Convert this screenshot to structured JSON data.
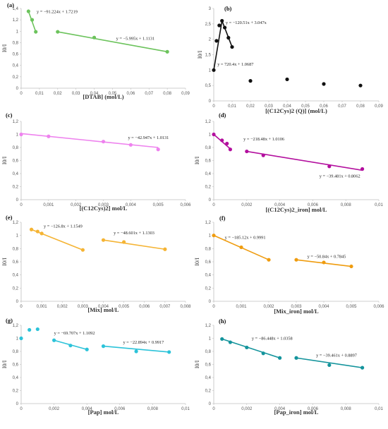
{
  "chart_data": [
    {
      "type": "scatter",
      "label": "(a)",
      "color": "#6cc35c",
      "xlabel": "[DTAB] (mol/L)",
      "ylabel": "I0/I",
      "xlim": [
        0,
        0.09
      ],
      "ylim": [
        0,
        1.4
      ],
      "xstep": 0.01,
      "ystep": 0.2,
      "xticks": [
        "0",
        "0,01",
        "0,02",
        "0,03",
        "0,04",
        "0,05",
        "0,06",
        "0,07",
        "0,08",
        "0,09"
      ],
      "yticks": [
        "0",
        "0,2",
        "0,4",
        "0,6",
        "0,8",
        "1",
        "1,2",
        "1,4"
      ],
      "points": [
        [
          0.004,
          1.35
        ],
        [
          0.006,
          1.2
        ],
        [
          0.008,
          0.99
        ],
        [
          0.02,
          0.99
        ],
        [
          0.04,
          0.89
        ],
        [
          0.08,
          0.64
        ]
      ],
      "lines": [
        [
          [
            0.004,
            1.35
          ],
          [
            0.008,
            0.99
          ]
        ],
        [
          [
            0.02,
            0.99
          ],
          [
            0.08,
            0.64
          ]
        ]
      ],
      "equations": [
        {
          "text": "y = −91.224x + 1.7219",
          "x": 0.0085,
          "y": 1.32
        },
        {
          "text": "y = −5.995x + 1.1131",
          "x": 0.052,
          "y": 0.85
        }
      ]
    },
    {
      "type": "scatter",
      "label": "(b)",
      "color": "#111111",
      "xlabel": "[(C12Cys)2 (Q)] (mol/L)",
      "ylabel": "I0/I",
      "xlim": [
        0,
        0.09
      ],
      "ylim": [
        0,
        3
      ],
      "xstep": 0.01,
      "ystep": 0.5,
      "xticks": [
        "0",
        "0,01",
        "0,02",
        "0,03",
        "0,04",
        "0,05",
        "0,06",
        "0,07",
        "0,08",
        "0,09"
      ],
      "yticks": [
        "0",
        "0,5",
        "1",
        "1,5",
        "2",
        "2,5",
        "3"
      ],
      "points": [
        [
          0,
          1.0
        ],
        [
          0.0015,
          1.95
        ],
        [
          0.003,
          2.45
        ],
        [
          0.0045,
          2.6
        ],
        [
          0.006,
          2.38
        ],
        [
          0.008,
          2.05
        ],
        [
          0.01,
          1.75
        ],
        [
          0.02,
          0.65
        ],
        [
          0.04,
          0.7
        ],
        [
          0.06,
          0.55
        ],
        [
          0.08,
          0.5
        ]
      ],
      "lines": [
        [
          [
            0,
            1.0
          ],
          [
            0.0045,
            2.6
          ]
        ],
        [
          [
            0.0045,
            2.6
          ],
          [
            0.01,
            1.75
          ]
        ]
      ],
      "equations": [
        {
          "text": "y = −120.51x + 3.047x",
          "x": 0.0065,
          "y": 2.5
        },
        {
          "text": "y = 720.4x + 1.0687",
          "x": 0.002,
          "y": 1.15
        }
      ]
    },
    {
      "type": "scatter",
      "label": "(c)",
      "color": "#ee82ee",
      "xlabel": "[(C12Cys)2] mol/L",
      "ylabel": "I0/I",
      "xlim": [
        0,
        0.006
      ],
      "ylim": [
        0,
        1.2
      ],
      "xstep": 0.001,
      "ystep": 0.2,
      "xticks": [
        "0",
        "0,001",
        "0,002",
        "0,003",
        "0,004",
        "0,005",
        "0,006"
      ],
      "yticks": [
        "0",
        "0,2",
        "0,4",
        "0,6",
        "0,8",
        "1",
        "1,2"
      ],
      "points": [
        [
          0,
          1.0
        ],
        [
          0.001,
          0.97
        ],
        [
          0.003,
          0.89
        ],
        [
          0.004,
          0.84
        ],
        [
          0.005,
          0.77
        ]
      ],
      "lines": [
        [
          [
            0,
            1.013
          ],
          [
            0.005,
            0.8
          ]
        ]
      ],
      "equations": [
        {
          "text": "y = −42.947x + 1.0131",
          "x": 0.0039,
          "y": 0.93
        }
      ]
    },
    {
      "type": "scatter",
      "label": "(d)",
      "color": "#b30f9e",
      "xlabel": "[(C12Cys)2_iron] mol/L",
      "ylabel": "I0/I",
      "xlim": [
        0,
        0.01
      ],
      "ylim": [
        0,
        1.2
      ],
      "xstep": 0.002,
      "ystep": 0.2,
      "xticks": [
        "0",
        "0,002",
        "0,004",
        "0,006",
        "0,008",
        "0,01"
      ],
      "yticks": [
        "0",
        "0,2",
        "0,4",
        "0,6",
        "0,8",
        "1",
        "1,2"
      ],
      "points": [
        [
          0,
          1.0
        ],
        [
          0.0005,
          0.91
        ],
        [
          0.0008,
          0.86
        ],
        [
          0.001,
          0.77
        ],
        [
          0.002,
          0.74
        ],
        [
          0.003,
          0.68
        ],
        [
          0.007,
          0.51
        ],
        [
          0.009,
          0.47
        ]
      ],
      "lines": [
        [
          [
            0,
            1.0
          ],
          [
            0.001,
            0.78
          ]
        ],
        [
          [
            0.002,
            0.74
          ],
          [
            0.009,
            0.45
          ]
        ]
      ],
      "equations": [
        {
          "text": "y = −218.48x + 1.0106",
          "x": 0.0018,
          "y": 0.91
        },
        {
          "text": "y = −39.481x + 0.8062",
          "x": 0.0064,
          "y": 0.34
        }
      ]
    },
    {
      "type": "scatter",
      "label": "(e)",
      "color": "#f5b434",
      "xlabel": "[Mix] mol/L",
      "ylabel": "I0/I",
      "xlim": [
        0,
        0.008
      ],
      "ylim": [
        0,
        1.2
      ],
      "xstep": 0.001,
      "ystep": 0.2,
      "xticks": [
        "0",
        "0,001",
        "0,002",
        "0,003",
        "0,004",
        "0,005",
        "0,006",
        "0,007",
        "0,008"
      ],
      "yticks": [
        "0",
        "0,2",
        "0,4",
        "0,6",
        "0,8",
        "1",
        "1,2"
      ],
      "points": [
        [
          0.0005,
          1.09
        ],
        [
          0.0008,
          1.06
        ],
        [
          0.001,
          1.03
        ],
        [
          0.003,
          0.78
        ],
        [
          0.004,
          0.93
        ],
        [
          0.005,
          0.9
        ],
        [
          0.007,
          0.79
        ]
      ],
      "lines": [
        [
          [
            0.0005,
            1.09
          ],
          [
            0.003,
            0.78
          ]
        ],
        [
          [
            0.004,
            0.93
          ],
          [
            0.007,
            0.79
          ]
        ]
      ],
      "equations": [
        {
          "text": "y = −126.8x + 1.1549",
          "x": 0.0011,
          "y": 1.12
        },
        {
          "text": "y = −48.601x + 1.1303",
          "x": 0.0045,
          "y": 1.02
        }
      ]
    },
    {
      "type": "scatter",
      "label": "(f)",
      "color": "#ef9c0f",
      "xlabel": "[Mix_iron] mol/L",
      "ylabel": "I0/I",
      "xlim": [
        0,
        0.006
      ],
      "ylim": [
        0,
        1.2
      ],
      "xstep": 0.001,
      "ystep": 0.2,
      "xticks": [
        "0",
        "0,001",
        "0,002",
        "0,003",
        "0,004",
        "0,005",
        "0,006"
      ],
      "yticks": [
        "0",
        "0,2",
        "0,4",
        "0,6",
        "0,8",
        "1",
        "1,2"
      ],
      "points": [
        [
          0,
          1.0
        ],
        [
          0.001,
          0.82
        ],
        [
          0.002,
          0.63
        ],
        [
          0.003,
          0.63
        ],
        [
          0.004,
          0.59
        ],
        [
          0.005,
          0.53
        ]
      ],
      "lines": [
        [
          [
            0,
            1.0
          ],
          [
            0.002,
            0.63
          ]
        ],
        [
          [
            0.003,
            0.63
          ],
          [
            0.005,
            0.53
          ]
        ]
      ],
      "equations": [
        {
          "text": "y = −185.12x + 0.9991",
          "x": 0.0004,
          "y": 0.95
        },
        {
          "text": "y = −50.84x + 0.7845",
          "x": 0.0034,
          "y": 0.66
        }
      ]
    },
    {
      "type": "scatter",
      "label": "(g)",
      "color": "#2cc3d9",
      "xlabel": "[Pap] mol/L",
      "ylabel": "I0/I",
      "xlim": [
        0,
        0.01
      ],
      "ylim": [
        0,
        1.2
      ],
      "xstep": 0.002,
      "ystep": 0.2,
      "xticks": [
        "0",
        "0,002",
        "0,004",
        "0,006",
        "0,008",
        "0,01"
      ],
      "yticks": [
        "0",
        "0,2",
        "0,4",
        "0,6",
        "0,8",
        "1",
        "1,2"
      ],
      "points": [
        [
          0,
          1.0
        ],
        [
          0.0005,
          1.13
        ],
        [
          0.001,
          1.14
        ],
        [
          0.002,
          0.97
        ],
        [
          0.003,
          0.89
        ],
        [
          0.004,
          0.83
        ],
        [
          0.005,
          0.88
        ],
        [
          0.007,
          0.8
        ],
        [
          0.009,
          0.79
        ]
      ],
      "lines": [
        [
          [
            0.002,
            0.97
          ],
          [
            0.004,
            0.83
          ]
        ],
        [
          [
            0.005,
            0.88
          ],
          [
            0.009,
            0.79
          ]
        ]
      ],
      "equations": [
        {
          "text": "y = −69.707x + 1.1092",
          "x": 0.002,
          "y": 1.06
        },
        {
          "text": "y = −22.894x + 0.9917",
          "x": 0.0062,
          "y": 0.92
        }
      ]
    },
    {
      "type": "scatter",
      "label": "(h)",
      "color": "#14949c",
      "xlabel": "[Pap_iron] mol/L",
      "ylabel": "I0/I",
      "xlim": [
        0,
        0.01
      ],
      "ylim": [
        0,
        1.2
      ],
      "xstep": 0.002,
      "ystep": 0.2,
      "xticks": [
        "0",
        "0,002",
        "0,004",
        "0,006",
        "0,008",
        "0,01"
      ],
      "yticks": [
        "0",
        "0,2",
        "0,4",
        "0,6",
        "0,8",
        "1",
        "1,2"
      ],
      "points": [
        [
          0.0005,
          0.99
        ],
        [
          0.001,
          0.94
        ],
        [
          0.002,
          0.86
        ],
        [
          0.003,
          0.77
        ],
        [
          0.004,
          0.7
        ],
        [
          0.005,
          0.7
        ],
        [
          0.007,
          0.59
        ],
        [
          0.009,
          0.55
        ]
      ],
      "lines": [
        [
          [
            0.0005,
            0.99
          ],
          [
            0.004,
            0.7
          ]
        ],
        [
          [
            0.005,
            0.7
          ],
          [
            0.009,
            0.55
          ]
        ]
      ],
      "equations": [
        {
          "text": "y = −86.448x + 1.0358",
          "x": 0.0023,
          "y": 0.98
        },
        {
          "text": "y = −39.461x + 0.8897",
          "x": 0.0062,
          "y": 0.72
        }
      ]
    }
  ]
}
